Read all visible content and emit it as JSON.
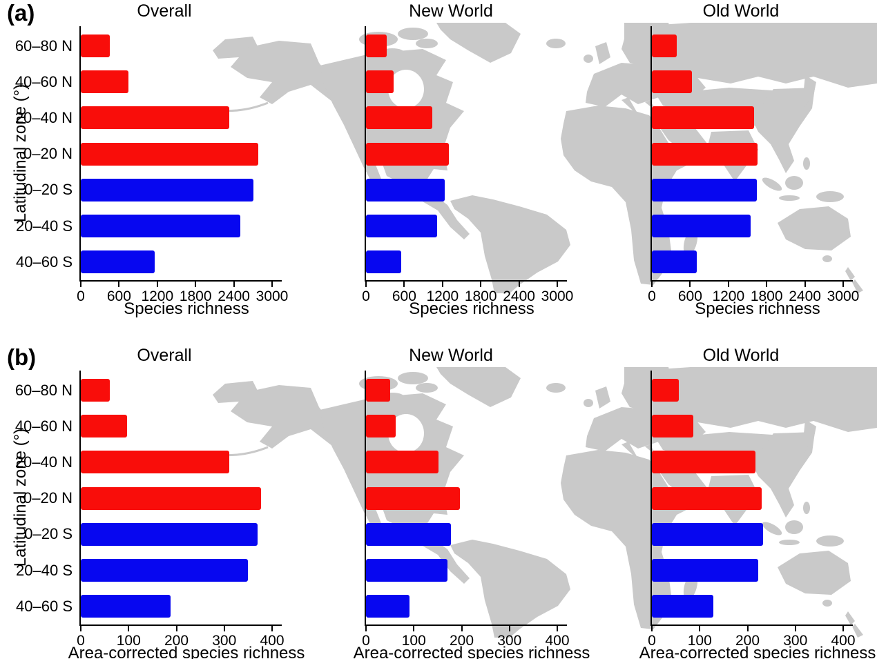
{
  "figure_title": "",
  "colors": {
    "bar_north": "#F90D0A",
    "bar_south": "#0707F0",
    "map_land": "#C9C9C9",
    "axis": "#000000",
    "background": "#FFFFFF"
  },
  "chart_data": [
    {
      "panel": "(a)",
      "type": "bar",
      "orientation": "horizontal",
      "categories": [
        "60–80 N",
        "40–60 N",
        "20–40 N",
        "0–20 N",
        "0–20 S",
        "20–40 S",
        "40–60 S"
      ],
      "series": [
        {
          "name": "Overall",
          "values": [
            450,
            750,
            2330,
            2780,
            2710,
            2500,
            1160
          ]
        },
        {
          "name": "New World",
          "values": [
            330,
            430,
            1040,
            1295,
            1230,
            1120,
            550
          ]
        },
        {
          "name": "Old World",
          "values": [
            390,
            630,
            1600,
            1660,
            1645,
            1550,
            700
          ]
        }
      ],
      "xlabel": "Species richness",
      "ylabel": "Latitudinal zone (°)",
      "xlim": [
        0,
        3000
      ],
      "xticks": [
        0,
        600,
        1200,
        1800,
        2400,
        3000
      ],
      "grid": false,
      "legend": "none",
      "north_bar_count": 4
    },
    {
      "panel": "(b)",
      "type": "bar",
      "orientation": "horizontal",
      "categories": [
        "60–80 N",
        "40–60 N",
        "20–40 N",
        "0–20 N",
        "0–20 S",
        "20–40 S",
        "40–60 S"
      ],
      "series": [
        {
          "name": "Overall",
          "values": [
            61,
            97,
            310,
            377,
            370,
            350,
            188
          ]
        },
        {
          "name": "New World",
          "values": [
            50,
            62,
            152,
            197,
            177,
            170,
            91
          ]
        },
        {
          "name": "Old World",
          "values": [
            56,
            86,
            216,
            229,
            233,
            223,
            128
          ]
        }
      ],
      "xlabel": "Area-corrected species richness",
      "ylabel": "Latitudinal zone (°)",
      "xlim": [
        0,
        400
      ],
      "xticks": [
        0,
        100,
        200,
        300,
        400
      ],
      "grid": false,
      "legend": "none",
      "north_bar_count": 4
    }
  ]
}
